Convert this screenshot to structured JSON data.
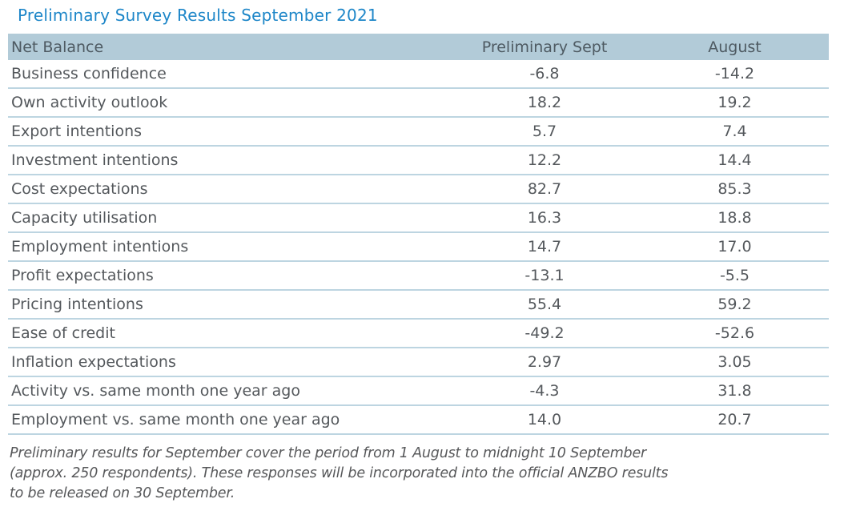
{
  "title": "Preliminary Survey Results September 2021",
  "table": {
    "columns": {
      "label": "Net Balance",
      "prelim": "Preliminary Sept",
      "august": "August"
    },
    "rows": [
      {
        "label": "Business confidence",
        "prelim": "-6.8",
        "august": "-14.2"
      },
      {
        "label": "Own activity outlook",
        "prelim": "18.2",
        "august": "19.2"
      },
      {
        "label": "Export intentions",
        "prelim": "5.7",
        "august": "7.4"
      },
      {
        "label": "Investment intentions",
        "prelim": "12.2",
        "august": "14.4"
      },
      {
        "label": "Cost expectations",
        "prelim": "82.7",
        "august": "85.3"
      },
      {
        "label": "Capacity utilisation",
        "prelim": "16.3",
        "august": "18.8"
      },
      {
        "label": "Employment intentions",
        "prelim": "14.7",
        "august": "17.0"
      },
      {
        "label": "Profit expectations",
        "prelim": "-13.1",
        "august": "-5.5"
      },
      {
        "label": "Pricing intentions",
        "prelim": "55.4",
        "august": "59.2"
      },
      {
        "label": "Ease of credit",
        "prelim": "-49.2",
        "august": "-52.6"
      },
      {
        "label": "Inflation expectations",
        "prelim": "2.97",
        "august": "3.05"
      },
      {
        "label": "Activity vs. same month one year ago",
        "prelim": "-4.3",
        "august": "31.8"
      },
      {
        "label": "Employment vs. same month one year ago",
        "prelim": "14.0",
        "august": "20.7"
      }
    ]
  },
  "footnote": {
    "lines": [
      "Preliminary results for September cover the period from 1 August to midnight 10 September",
      "(approx. 250 respondents). These responses will be incorporated into the official ANZBO results",
      "to be released on 30 September."
    ]
  },
  "colors": {
    "title_blue": "#1d86c8",
    "header_band": "#b2cbd8",
    "row_divider": "#bdd5e1",
    "body_text": "#54585c",
    "footnote_text": "#57585a"
  }
}
